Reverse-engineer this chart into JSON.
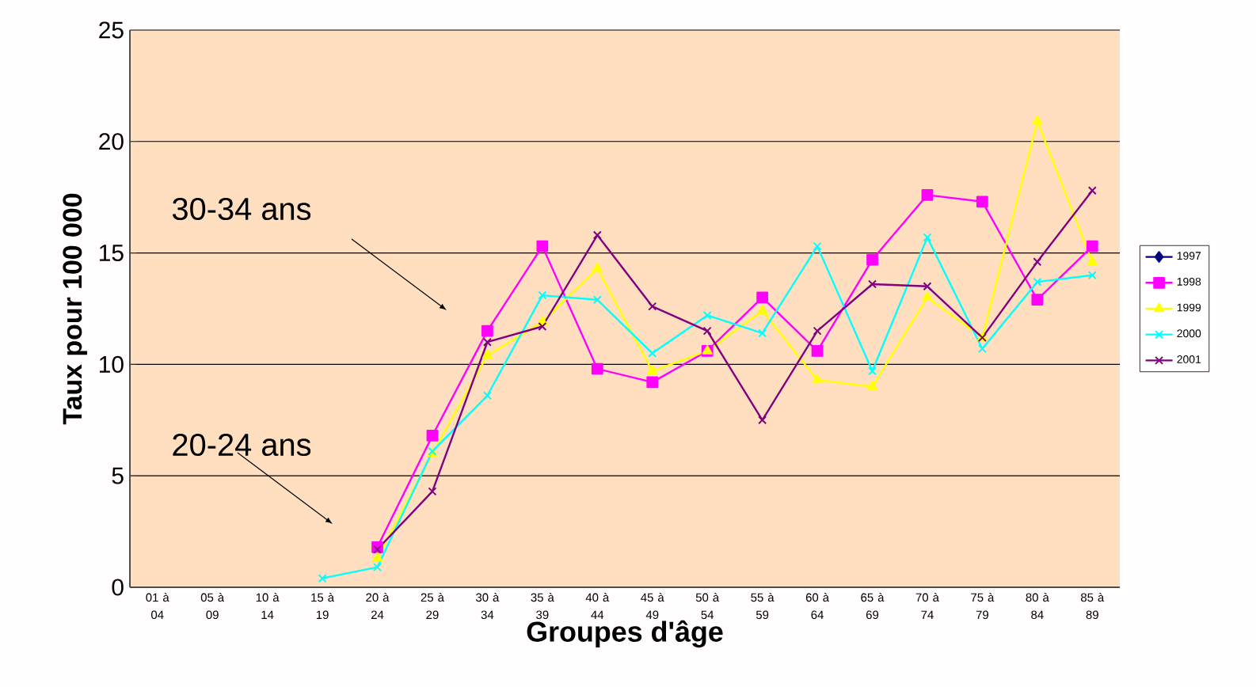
{
  "chart_data": {
    "type": "line",
    "xlabel": "Groupes d'âge",
    "ylabel": "Taux pour 100 000",
    "categories": [
      "01 à 04",
      "05 à 09",
      "10 à 14",
      "15 à 19",
      "20 à 24",
      "25 à 29",
      "30 à 34",
      "35 à 39",
      "40 à 44",
      "45 à 49",
      "50 à 54",
      "55 à 59",
      "60 à 64",
      "65 à 69",
      "70 à 74",
      "75 à 79",
      "80 à 84",
      "85 à 89"
    ],
    "series": [
      {
        "name": "1997",
        "color": "#000080",
        "marker": "diamond",
        "values": [
          null,
          null,
          null,
          null,
          null,
          null,
          null,
          null,
          null,
          null,
          null,
          null,
          null,
          null,
          null,
          null,
          null,
          null
        ]
      },
      {
        "name": "1998",
        "color": "#ff00ff",
        "marker": "square",
        "values": [
          null,
          null,
          null,
          null,
          1.8,
          6.8,
          11.5,
          15.3,
          9.8,
          9.2,
          10.6,
          13.0,
          10.6,
          14.7,
          17.6,
          17.3,
          12.9,
          15.3
        ]
      },
      {
        "name": "1999",
        "color": "#ffff00",
        "marker": "triangle",
        "values": [
          null,
          null,
          null,
          null,
          1.3,
          6.0,
          10.4,
          11.9,
          14.3,
          9.7,
          10.6,
          12.4,
          9.3,
          9.0,
          13.0,
          11.2,
          20.9,
          14.6
        ]
      },
      {
        "name": "2000",
        "color": "#00ffff",
        "marker": "cross",
        "values": [
          null,
          null,
          null,
          0.4,
          0.9,
          6.1,
          8.6,
          13.1,
          12.9,
          10.5,
          12.2,
          11.4,
          15.3,
          9.7,
          15.7,
          10.7,
          13.7,
          14.0
        ]
      },
      {
        "name": "2001",
        "color": "#800080",
        "marker": "cross",
        "values": [
          null,
          null,
          null,
          null,
          1.7,
          4.3,
          11.0,
          11.7,
          15.8,
          12.6,
          11.5,
          7.5,
          11.5,
          13.6,
          13.5,
          11.2,
          14.6,
          17.8
        ]
      }
    ],
    "ylim": [
      0,
      25
    ],
    "yticks": [
      0,
      5,
      10,
      15,
      20,
      25
    ],
    "grid": "y",
    "legend": "right",
    "annotations": [
      "30-34 ans",
      "20-24 ans"
    ]
  }
}
